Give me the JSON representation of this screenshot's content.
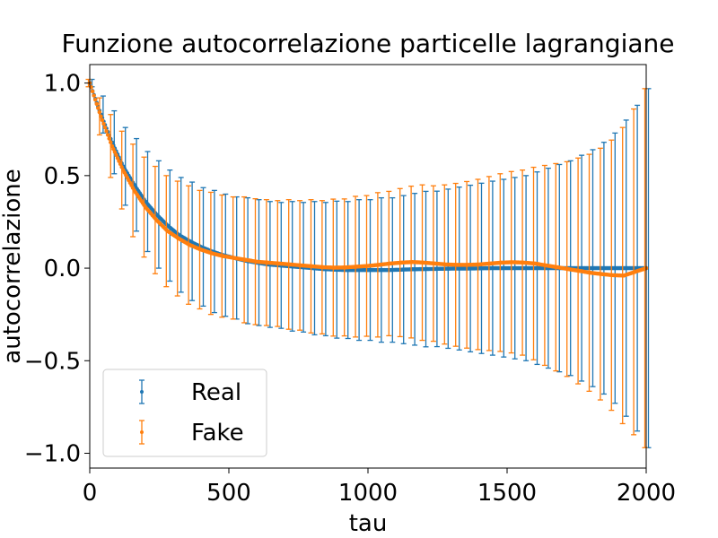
{
  "chart_data": {
    "type": "line",
    "title": "Funzione autocorrelazione particelle lagrangiane",
    "xlabel": "tau",
    "ylabel": "autocorrelazione",
    "xlim": [
      0,
      2000
    ],
    "ylim": [
      -1.08,
      1.1
    ],
    "xticks": [
      0,
      500,
      1000,
      1500,
      2000
    ],
    "xtick_labels": [
      "0",
      "500",
      "1000",
      "1500",
      "2000"
    ],
    "yticks": [
      1.0,
      0.5,
      0.0,
      -0.5,
      -1.0
    ],
    "ytick_labels": [
      "1.0",
      "0.5",
      "0.0",
      "−0.5",
      "−1.0"
    ],
    "grid": false,
    "legend_position": "lower-left",
    "series": [
      {
        "name": "Real",
        "color": "#1f77b4",
        "tau": [
          0,
          40,
          80,
          120,
          160,
          200,
          240,
          280,
          320,
          360,
          400,
          440,
          480,
          520,
          560,
          600,
          640,
          680,
          720,
          760,
          800,
          840,
          880,
          920,
          960,
          1000,
          1040,
          1080,
          1120,
          1160,
          1200,
          1240,
          1280,
          1320,
          1360,
          1400,
          1440,
          1480,
          1520,
          1560,
          1600,
          1640,
          1680,
          1720,
          1760,
          1800,
          1840,
          1880,
          1920,
          1960,
          2000
        ],
        "autocorrelazione": [
          1.0,
          0.83,
          0.68,
          0.55,
          0.45,
          0.36,
          0.29,
          0.23,
          0.18,
          0.145,
          0.115,
          0.09,
          0.07,
          0.055,
          0.04,
          0.03,
          0.02,
          0.015,
          0.01,
          0.005,
          0.0,
          -0.005,
          -0.008,
          -0.01,
          -0.01,
          -0.01,
          -0.01,
          -0.01,
          -0.008,
          -0.006,
          -0.005,
          -0.004,
          -0.003,
          -0.002,
          -0.002,
          -0.001,
          0.0,
          0.0,
          0.0,
          0.0,
          0.0,
          0.0,
          0.0,
          0.0,
          0.0,
          0.0,
          0.0,
          0.0,
          0.0,
          0.0,
          0.0
        ],
        "error": [
          0.02,
          0.1,
          0.17,
          0.21,
          0.25,
          0.27,
          0.29,
          0.3,
          0.31,
          0.32,
          0.32,
          0.33,
          0.33,
          0.33,
          0.34,
          0.34,
          0.34,
          0.34,
          0.35,
          0.35,
          0.36,
          0.36,
          0.37,
          0.37,
          0.38,
          0.38,
          0.39,
          0.39,
          0.4,
          0.41,
          0.42,
          0.42,
          0.43,
          0.44,
          0.45,
          0.46,
          0.47,
          0.48,
          0.49,
          0.5,
          0.52,
          0.54,
          0.56,
          0.58,
          0.61,
          0.64,
          0.68,
          0.73,
          0.8,
          0.88,
          0.97
        ]
      },
      {
        "name": "Fake",
        "color": "#ff7f0e",
        "tau": [
          0,
          40,
          80,
          120,
          160,
          200,
          240,
          280,
          320,
          360,
          400,
          440,
          480,
          520,
          560,
          600,
          640,
          680,
          720,
          760,
          800,
          840,
          880,
          920,
          960,
          1000,
          1040,
          1080,
          1120,
          1160,
          1200,
          1240,
          1280,
          1320,
          1360,
          1400,
          1440,
          1480,
          1520,
          1560,
          1600,
          1640,
          1680,
          1720,
          1760,
          1800,
          1840,
          1880,
          1920,
          1960,
          2000
        ],
        "autocorrelazione": [
          1.0,
          0.82,
          0.66,
          0.53,
          0.42,
          0.33,
          0.26,
          0.2,
          0.16,
          0.125,
          0.1,
          0.08,
          0.065,
          0.055,
          0.045,
          0.035,
          0.03,
          0.025,
          0.02,
          0.015,
          0.01,
          0.005,
          0.003,
          0.004,
          0.008,
          0.012,
          0.018,
          0.025,
          0.03,
          0.033,
          0.03,
          0.025,
          0.02,
          0.018,
          0.018,
          0.02,
          0.025,
          0.03,
          0.032,
          0.03,
          0.025,
          0.015,
          0.005,
          -0.005,
          -0.015,
          -0.025,
          -0.032,
          -0.038,
          -0.04,
          -0.02,
          0.0
        ],
        "error": [
          0.02,
          0.1,
          0.17,
          0.21,
          0.25,
          0.27,
          0.29,
          0.3,
          0.31,
          0.32,
          0.32,
          0.33,
          0.33,
          0.33,
          0.34,
          0.34,
          0.34,
          0.34,
          0.35,
          0.35,
          0.36,
          0.36,
          0.37,
          0.37,
          0.38,
          0.38,
          0.39,
          0.39,
          0.4,
          0.41,
          0.42,
          0.42,
          0.43,
          0.44,
          0.45,
          0.46,
          0.47,
          0.48,
          0.49,
          0.5,
          0.52,
          0.54,
          0.56,
          0.58,
          0.61,
          0.64,
          0.68,
          0.73,
          0.8,
          0.88,
          0.97
        ]
      }
    ]
  }
}
